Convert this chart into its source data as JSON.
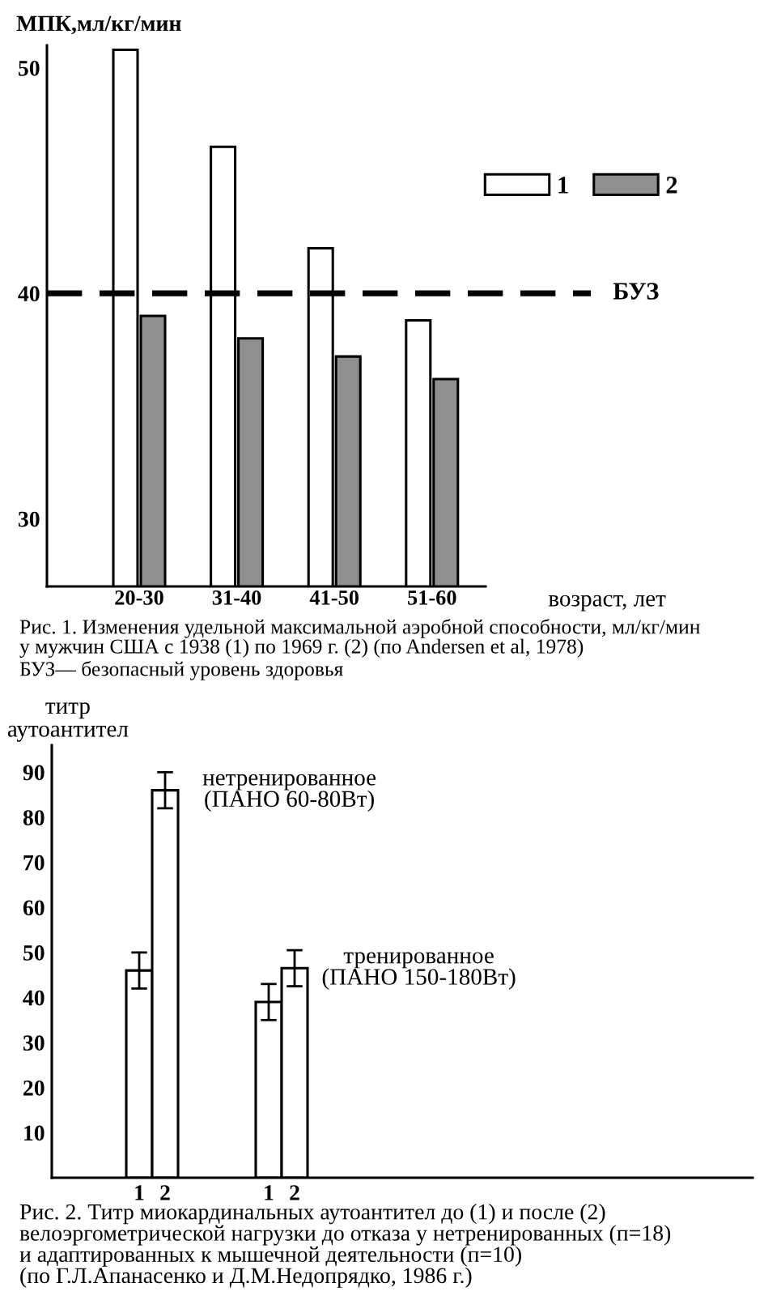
{
  "chart_data": [
    {
      "type": "bar",
      "title": "Рис. 1. Изменения удельной максимальной аэробной способности, мл/кг/мин\nу мужчин США с 1938 (1) по 1969 г. (2) (по Andersen et al, 1978)",
      "ylabel": "МПК,мл/кг/мин",
      "xlabel": "возраст, лет",
      "annotations": [
        "БУЗ— безопасный уровень здоровья"
      ],
      "categories": [
        "20-30",
        "31-40",
        "41-50",
        "51-60"
      ],
      "series": [
        {
          "name": "1",
          "color": "#ffffff",
          "values": [
            50.8,
            46.5,
            42,
            38.8
          ]
        },
        {
          "name": "2",
          "color": "#8f8f8f",
          "values": [
            39,
            38,
            37.2,
            36.2
          ]
        }
      ],
      "ylim": [
        27,
        51
      ],
      "yticks": [
        30,
        40,
        50
      ],
      "ref_lines": [
        {
          "axis": "y",
          "value": 40,
          "label": "БУЗ",
          "line_style": "dashed",
          "color": "#000000"
        }
      ],
      "legend": "top right"
    },
    {
      "type": "bar",
      "title": "Рис. 2. Титр миокардинальных аутоантител до (1) и после (2)\nвелоэргометрической нагрузки до отказа у нетренированных (п=18)\nи адаптированных к мышечной деятельности (п=10)\n(по Г.Л.Апанасенко и Д.М.Недопрядко, 1986 г.)",
      "ylabel": "титр\nаутоантител",
      "annotations": [
        "нетренированное\n(ПАНО 60-80Вт)",
        "тренированное\n(ПАНО 150-180Вт)"
      ],
      "categories": [
        "1",
        "2",
        null,
        null,
        null,
        "1",
        "2"
      ],
      "values": [
        46,
        86,
        null,
        null,
        null,
        39,
        46.5
      ],
      "errors": [
        4,
        4,
        null,
        null,
        null,
        4,
        4
      ],
      "color": "#ffffff",
      "ylim": [
        0,
        96
      ],
      "yticks": [
        10,
        20,
        30,
        40,
        50,
        60,
        70,
        80,
        90
      ]
    }
  ]
}
